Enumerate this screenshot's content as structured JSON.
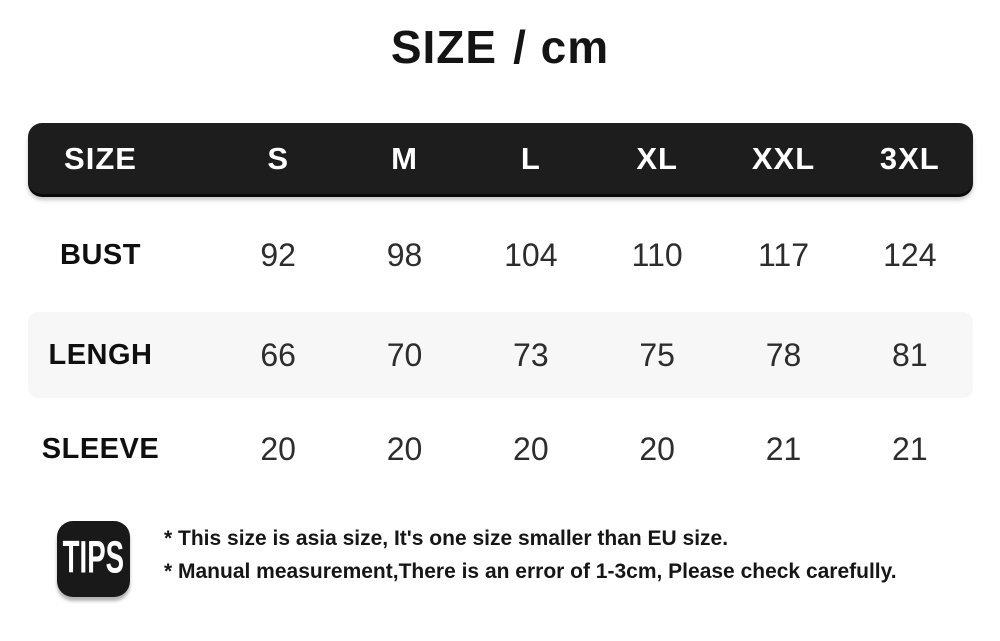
{
  "title": {
    "main": "SIZE",
    "unit": "/ cm",
    "full": "SIZE / cm"
  },
  "chart_data": {
    "type": "table",
    "title": "SIZE / cm",
    "unit": "cm",
    "columns": [
      "SIZE",
      "S",
      "M",
      "L",
      "XL",
      "XXL",
      "3XL"
    ],
    "rows": [
      {
        "label": "BUST",
        "values": [
          "92",
          "98",
          "104",
          "110",
          "117",
          "124"
        ]
      },
      {
        "label": "LENGH",
        "values": [
          "66",
          "70",
          "73",
          "75",
          "78",
          "81"
        ]
      },
      {
        "label": "SLEEVE",
        "values": [
          "20",
          "20",
          "20",
          "20",
          "21",
          "21"
        ]
      }
    ],
    "notes": [
      "* This size is asia size, It's one size smaller than EU size.",
      "* Manual measurement,There is an error of 1-3cm, Please check carefully."
    ]
  },
  "tips": {
    "icon_label": "TIPS",
    "lines": [
      "* This size is asia size, It's one size smaller than EU size.",
      "* Manual measurement,There is an error of 1-3cm, Please check carefully."
    ]
  },
  "colors": {
    "background": "#ffffff",
    "header_bg": "#1d1d1d",
    "header_text": "#ffffff",
    "band_bg": "#f7f7f7",
    "label_text": "#0f0f0f",
    "value_text": "#2d2d2d"
  }
}
